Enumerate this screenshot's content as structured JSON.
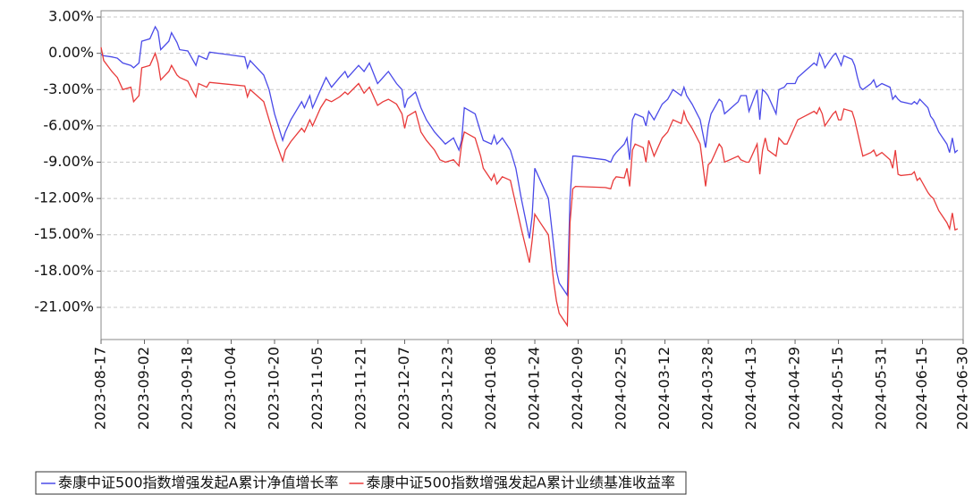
{
  "chart_data": {
    "type": "line",
    "x": [
      "2023-08-17",
      "2023-08-18",
      "2023-08-21",
      "2023-08-23",
      "2023-08-25",
      "2023-08-28",
      "2023-08-29",
      "2023-08-31",
      "2023-09-01",
      "2023-09-04",
      "2023-09-06",
      "2023-09-07",
      "2023-09-08",
      "2023-09-11",
      "2023-09-12",
      "2023-09-14",
      "2023-09-15",
      "2023-09-18",
      "2023-09-20",
      "2023-09-21",
      "2023-09-22",
      "2023-09-25",
      "2023-09-26",
      "2023-10-09",
      "2023-10-10",
      "2023-10-11",
      "2023-10-16",
      "2023-10-18",
      "2023-10-20",
      "2023-10-23",
      "2023-10-24",
      "2023-10-26",
      "2023-10-30",
      "2023-10-31",
      "2023-11-02",
      "2023-11-03",
      "2023-11-06",
      "2023-11-08",
      "2023-11-10",
      "2023-11-13",
      "2023-11-15",
      "2023-11-16",
      "2023-11-20",
      "2023-11-22",
      "2023-11-24",
      "2023-11-27",
      "2023-11-29",
      "2023-12-01",
      "2023-12-04",
      "2023-12-06",
      "2023-12-07",
      "2023-12-08",
      "2023-12-11",
      "2023-12-13",
      "2023-12-15",
      "2023-12-18",
      "2023-12-20",
      "2023-12-22",
      "2023-12-25",
      "2023-12-27",
      "2023-12-28",
      "2023-12-29",
      "2024-01-02",
      "2024-01-04",
      "2024-01-05",
      "2024-01-08",
      "2024-01-09",
      "2024-01-10",
      "2024-01-12",
      "2024-01-15",
      "2024-01-17",
      "2024-01-19",
      "2024-01-22",
      "2024-01-23",
      "2024-01-24",
      "2024-01-26",
      "2024-01-29",
      "2024-01-31",
      "2024-02-01",
      "2024-02-02",
      "2024-02-05",
      "2024-02-06",
      "2024-02-07",
      "2024-02-08",
      "2024-02-19",
      "2024-02-21",
      "2024-02-22",
      "2024-02-23",
      "2024-02-26",
      "2024-02-27",
      "2024-02-28",
      "2024-02-29",
      "2024-03-01",
      "2024-03-04",
      "2024-03-05",
      "2024-03-06",
      "2024-03-08",
      "2024-03-11",
      "2024-03-13",
      "2024-03-15",
      "2024-03-18",
      "2024-03-19",
      "2024-03-20",
      "2024-03-22",
      "2024-03-25",
      "2024-03-27",
      "2024-03-28",
      "2024-03-29",
      "2024-04-01",
      "2024-04-02",
      "2024-04-03",
      "2024-04-08",
      "2024-04-09",
      "2024-04-11",
      "2024-04-12",
      "2024-04-15",
      "2024-04-16",
      "2024-04-17",
      "2024-04-18",
      "2024-04-19",
      "2024-04-22",
      "2024-04-23",
      "2024-04-25",
      "2024-04-26",
      "2024-04-29",
      "2024-04-30",
      "2024-05-06",
      "2024-05-07",
      "2024-05-08",
      "2024-05-09",
      "2024-05-10",
      "2024-05-13",
      "2024-05-14",
      "2024-05-15",
      "2024-05-16",
      "2024-05-17",
      "2024-05-20",
      "2024-05-21",
      "2024-05-22",
      "2024-05-23",
      "2024-05-24",
      "2024-05-27",
      "2024-05-28",
      "2024-05-29",
      "2024-05-31",
      "2024-06-03",
      "2024-06-04",
      "2024-06-05",
      "2024-06-06",
      "2024-06-07",
      "2024-06-11",
      "2024-06-12",
      "2024-06-13",
      "2024-06-14",
      "2024-06-17",
      "2024-06-18",
      "2024-06-19",
      "2024-06-20",
      "2024-06-21",
      "2024-06-24",
      "2024-06-25",
      "2024-06-26",
      "2024-06-27",
      "2024-06-28"
    ],
    "series": [
      {
        "name": "泰康中证500指数增强发起A累计净值增长率",
        "color": "#4a4ae8",
        "values": [
          -0.1,
          -0.2,
          -0.3,
          -0.4,
          -0.8,
          -1.0,
          -1.2,
          -0.8,
          1.0,
          1.2,
          2.2,
          1.8,
          0.3,
          1.0,
          1.7,
          0.9,
          0.3,
          0.2,
          -0.6,
          -1.0,
          -0.2,
          -0.5,
          0.1,
          -0.3,
          -1.2,
          -0.6,
          -1.8,
          -3.0,
          -5.0,
          -7.2,
          -6.5,
          -5.5,
          -4.0,
          -4.5,
          -3.5,
          -4.5,
          -3.0,
          -2.0,
          -2.8,
          -2.0,
          -1.5,
          -2.0,
          -1.0,
          -1.5,
          -0.8,
          -2.5,
          -2.0,
          -1.5,
          -2.5,
          -3.0,
          -4.5,
          -3.8,
          -3.2,
          -4.5,
          -5.5,
          -6.5,
          -7.0,
          -7.5,
          -7.0,
          -8.0,
          -7.2,
          -4.5,
          -5.0,
          -6.5,
          -7.2,
          -7.5,
          -6.8,
          -7.5,
          -7.0,
          -8.0,
          -9.5,
          -12.0,
          -15.3,
          -13.5,
          -9.5,
          -10.5,
          -12.0,
          -16.0,
          -18.0,
          -19.0,
          -20.0,
          -12.0,
          -8.5,
          -8.5,
          -8.8,
          -9.0,
          -8.5,
          -8.2,
          -7.5,
          -7.0,
          -8.8,
          -5.5,
          -5.0,
          -5.3,
          -6.0,
          -4.8,
          -5.5,
          -4.2,
          -3.8,
          -3.0,
          -3.5,
          -2.8,
          -3.5,
          -4.2,
          -5.5,
          -7.8,
          -6.0,
          -5.0,
          -3.8,
          -4.0,
          -5.0,
          -4.0,
          -3.5,
          -3.5,
          -4.8,
          -3.0,
          -5.5,
          -3.0,
          -3.2,
          -3.5,
          -5.0,
          -3.0,
          -2.8,
          -2.5,
          -2.5,
          -2.0,
          -0.8,
          -1.0,
          0.0,
          -0.5,
          -1.2,
          -0.2,
          0.0,
          -0.5,
          -1.0,
          -0.2,
          -0.5,
          -1.0,
          -2.0,
          -2.8,
          -3.0,
          -2.5,
          -2.2,
          -2.8,
          -2.5,
          -2.8,
          -3.8,
          -3.5,
          -3.8,
          -4.0,
          -4.2,
          -4.0,
          -4.2,
          -3.8,
          -4.5,
          -5.2,
          -5.5,
          -6.0,
          -6.5,
          -7.5,
          -8.2,
          -7.0,
          -8.2,
          -8.0
        ]
      },
      {
        "name": "泰康中证500指数增强发起A累计业绩基准收益率",
        "color": "#e83a3a",
        "values": [
          0.5,
          -0.6,
          -1.5,
          -2.0,
          -3.0,
          -2.8,
          -4.0,
          -3.5,
          -1.2,
          -1.0,
          0.0,
          -0.8,
          -2.2,
          -1.5,
          -1.0,
          -1.8,
          -2.0,
          -2.3,
          -3.2,
          -3.6,
          -2.5,
          -2.8,
          -2.4,
          -2.7,
          -3.6,
          -3.0,
          -4.0,
          -5.5,
          -7.0,
          -8.9,
          -8.0,
          -7.3,
          -6.2,
          -6.5,
          -5.5,
          -6.0,
          -4.5,
          -3.8,
          -4.0,
          -3.6,
          -3.2,
          -3.4,
          -2.5,
          -3.3,
          -2.8,
          -4.3,
          -4.0,
          -3.8,
          -4.2,
          -5.0,
          -6.2,
          -5.2,
          -4.8,
          -6.5,
          -7.2,
          -8.0,
          -8.8,
          -9.0,
          -8.8,
          -9.3,
          -7.5,
          -6.5,
          -7.0,
          -8.5,
          -9.5,
          -10.5,
          -10.0,
          -10.8,
          -10.2,
          -10.5,
          -12.5,
          -14.5,
          -17.3,
          -15.5,
          -13.3,
          -14.0,
          -15.0,
          -19.0,
          -20.5,
          -21.5,
          -22.5,
          -14.0,
          -11.2,
          -11.0,
          -11.1,
          -11.2,
          -10.5,
          -10.2,
          -10.3,
          -9.5,
          -11.0,
          -8.0,
          -7.5,
          -7.8,
          -9.0,
          -7.2,
          -8.5,
          -7.0,
          -6.5,
          -5.5,
          -5.8,
          -4.8,
          -5.5,
          -6.2,
          -7.5,
          -11.0,
          -9.2,
          -9.0,
          -7.5,
          -7.8,
          -9.0,
          -8.5,
          -8.8,
          -9.0,
          -9.0,
          -7.5,
          -10.0,
          -8.0,
          -7.0,
          -8.0,
          -8.5,
          -7.0,
          -7.5,
          -7.5,
          -6.0,
          -5.5,
          -4.8,
          -5.0,
          -4.5,
          -5.0,
          -6.0,
          -5.0,
          -4.8,
          -5.5,
          -5.5,
          -4.6,
          -4.8,
          -5.5,
          -6.5,
          -7.5,
          -8.5,
          -8.2,
          -8.0,
          -8.5,
          -8.2,
          -8.8,
          -9.5,
          -8.0,
          -10.0,
          -10.1,
          -10.0,
          -9.8,
          -10.5,
          -10.3,
          -11.5,
          -11.8,
          -12.0,
          -12.5,
          -13.0,
          -14.0,
          -14.5,
          -13.2,
          -14.6,
          -14.5
        ]
      }
    ],
    "xlim": [
      "2023-08-17",
      "2024-06-30"
    ],
    "xticks": [
      "2023-08-17",
      "2023-09-02",
      "2023-09-18",
      "2023-10-04",
      "2023-10-20",
      "2023-11-05",
      "2023-11-21",
      "2023-12-07",
      "2023-12-23",
      "2024-01-08",
      "2024-01-24",
      "2024-02-09",
      "2024-02-25",
      "2024-03-12",
      "2024-03-28",
      "2024-04-13",
      "2024-04-29",
      "2024-05-15",
      "2024-05-31",
      "2024-06-15",
      "2024-06-30"
    ],
    "ylim": [
      -23.66,
      3.52
    ],
    "yticks": [
      {
        "value": 3,
        "label": "3.00%"
      },
      {
        "value": 0,
        "label": "0.00%"
      },
      {
        "value": -3,
        "label": "-3.00%"
      },
      {
        "value": -6,
        "label": "-6.00%"
      },
      {
        "value": -9,
        "label": "-9.00%"
      },
      {
        "value": -12,
        "label": "-12.00%"
      },
      {
        "value": -15,
        "label": "-15.00%"
      },
      {
        "value": -18,
        "label": "-18.00%"
      },
      {
        "value": -21,
        "label": "-21.00%"
      }
    ],
    "grid": true,
    "legend": "bottom"
  }
}
